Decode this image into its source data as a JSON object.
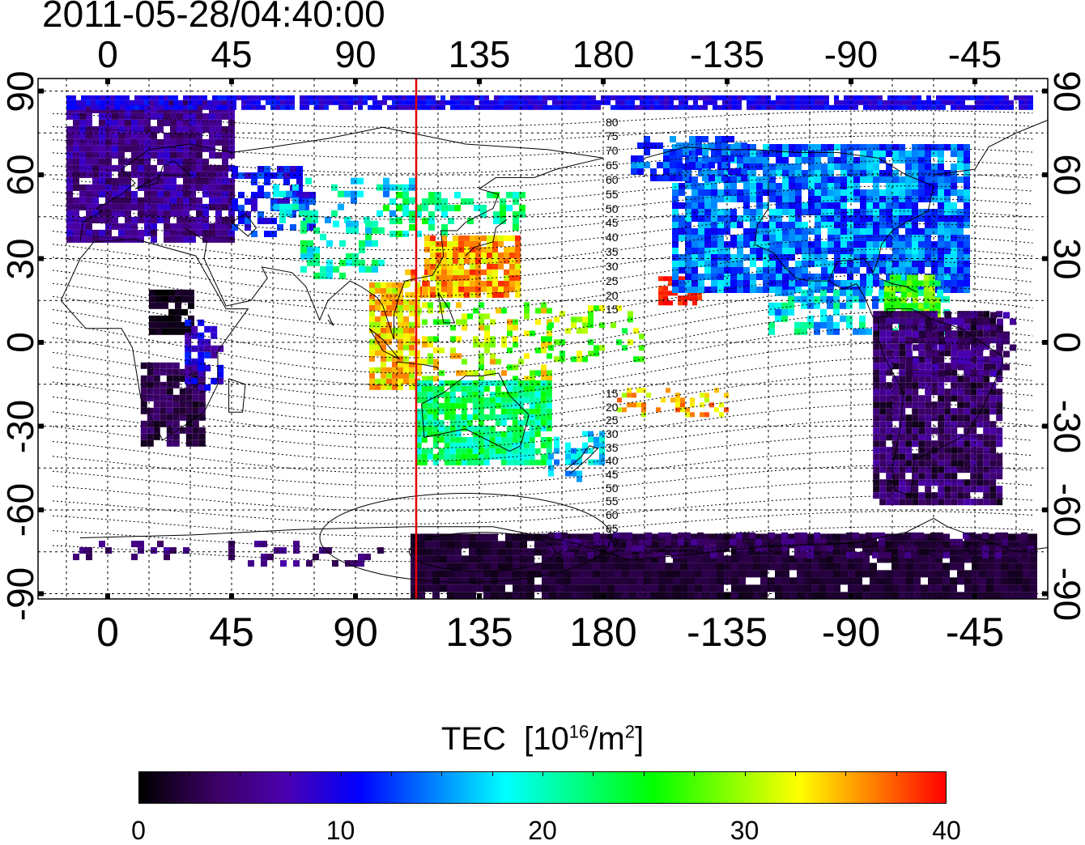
{
  "title": "2011-05-28/04:40:00",
  "map": {
    "lon_ticks_top": [
      "0",
      "45",
      "90",
      "135",
      "180",
      "-135",
      "-90",
      "-45"
    ],
    "lon_ticks_bottom": [
      "0",
      "45",
      "90",
      "135",
      "180",
      "-135",
      "-90",
      "-45"
    ],
    "lat_ticks_left": [
      "90",
      "60",
      "30",
      "0",
      "-30",
      "-60",
      "-90"
    ],
    "lat_ticks_right": [
      "90",
      "60",
      "30",
      "0",
      "-30",
      "-60",
      "-90"
    ],
    "meridian_marker_lon": 110,
    "meridian_marker_color": "#e00000",
    "contour_labels": [
      "80",
      "75",
      "70",
      "65",
      "60",
      "55",
      "50",
      "45",
      "40",
      "35",
      "30",
      "25",
      "20",
      "15",
      "15",
      "20",
      "25",
      "30",
      "35",
      "40",
      "45",
      "50",
      "55",
      "60",
      "65",
      "70",
      "75"
    ]
  },
  "colorbar": {
    "label": "TEC",
    "unit_base": "[10",
    "unit_exp": "16",
    "unit_mid": "/m",
    "unit_exp2": "2",
    "unit_end": "]",
    "ticks": [
      "0",
      "10",
      "20",
      "30",
      "40"
    ],
    "colors": [
      "#000000",
      "#3a0060",
      "#4b00b0",
      "#0000ff",
      "#0080ff",
      "#00ffff",
      "#00ff80",
      "#00ff00",
      "#80ff00",
      "#ffff00",
      "#ff8000",
      "#ff0000"
    ]
  },
  "chart_data": {
    "type": "heatmap",
    "title": "2011-05-28/04:40:00",
    "x_axis": "longitude",
    "x_range": [
      -20,
      335
    ],
    "y_axis": "latitude",
    "y_range": [
      -95,
      95
    ],
    "value_label": "TEC [10^16/m^2]",
    "value_range": [
      0,
      40
    ],
    "regions": [
      {
        "region": "Europe",
        "lon": [
          -15,
          45
        ],
        "lat": [
          35,
          88
        ],
        "tec": 7
      },
      {
        "region": "Northern Eurasia",
        "lon": [
          45,
          100
        ],
        "lat": [
          42,
          70
        ],
        "tec": 15
      },
      {
        "region": "East China / Japan",
        "lon": [
          115,
          145
        ],
        "lat": [
          20,
          40
        ],
        "tec": 36
      },
      {
        "region": "Southeast Asia",
        "lon": [
          95,
          112
        ],
        "lat": [
          -15,
          20
        ],
        "tec": 34
      },
      {
        "region": "Australia",
        "lon": [
          115,
          155
        ],
        "lat": [
          -40,
          -10
        ],
        "tec": 23
      },
      {
        "region": "North America",
        "lon": [
          210,
          310
        ],
        "lat": [
          20,
          70
        ],
        "tec": 14
      },
      {
        "region": "Caribbean",
        "lon": [
          280,
          300
        ],
        "lat": [
          10,
          25
        ],
        "tec": 27
      },
      {
        "region": "South America",
        "lon": [
          278,
          325
        ],
        "lat": [
          -56,
          10
        ],
        "tec": 4
      },
      {
        "region": "Southern Africa",
        "lon": [
          12,
          35
        ],
        "lat": [
          -35,
          -5
        ],
        "tec": 3
      },
      {
        "region": "Antarctica",
        "lon": [
          110,
          335
        ],
        "lat": [
          -90,
          -70
        ],
        "tec": 2
      },
      {
        "region": "Central Pacific",
        "lon": [
          200,
          210
        ],
        "lat": [
          15,
          25
        ],
        "tec": 39
      }
    ]
  }
}
